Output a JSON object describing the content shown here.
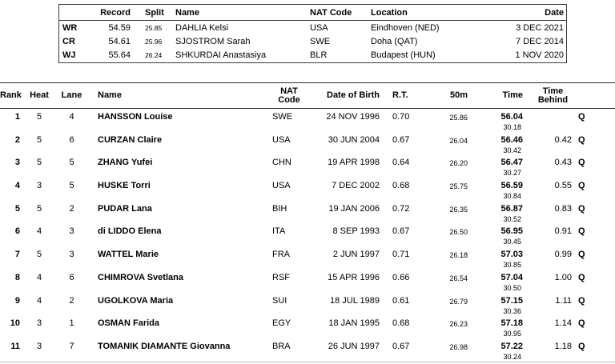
{
  "records": {
    "headers": {
      "record": "Record",
      "split": "Split",
      "name": "Name",
      "nat": "NAT Code",
      "location": "Location",
      "date": "Date"
    },
    "rows": [
      {
        "label": "WR",
        "record": "54.59",
        "split": "25.85",
        "name": "DAHLIA Kelsi",
        "nat": "USA",
        "location": "Eindhoven (NED)",
        "date": "3 DEC 2021"
      },
      {
        "label": "CR",
        "record": "54.61",
        "split": "25.96",
        "name": "SJOSTROM Sarah",
        "nat": "SWE",
        "location": "Doha (QAT)",
        "date": "7 DEC 2014"
      },
      {
        "label": "WJ",
        "record": "55.64",
        "split": "26.24",
        "name": "SHKURDAI Anastasiya",
        "nat": "BLR",
        "location": "Budapest (HUN)",
        "date": "1 NOV 2020"
      }
    ]
  },
  "results": {
    "headers": {
      "rank": "Rank",
      "heat": "Heat",
      "lane": "Lane",
      "name": "Name",
      "nat_line1": "NAT",
      "nat_line2": "Code",
      "dob": "Date of Birth",
      "rt": "R.T.",
      "split50": "50m",
      "time": "Time",
      "behind_line1": "Time",
      "behind_line2": "Behind"
    },
    "rows": [
      {
        "rank": "1",
        "heat": "5",
        "lane": "4",
        "name": "HANSSON Louise",
        "nat": "SWE",
        "dob": "24 NOV 1996",
        "rt": "0.70",
        "split50": "25.86",
        "time": "56.04",
        "time_sub": "30.18",
        "behind": "",
        "q": "Q"
      },
      {
        "rank": "2",
        "heat": "5",
        "lane": "6",
        "name": "CURZAN Claire",
        "nat": "USA",
        "dob": "30 JUN 2004",
        "rt": "0.67",
        "split50": "26.04",
        "time": "56.46",
        "time_sub": "30.42",
        "behind": "0.42",
        "q": "Q"
      },
      {
        "rank": "3",
        "heat": "5",
        "lane": "5",
        "name": "ZHANG Yufei",
        "nat": "CHN",
        "dob": "19 APR 1998",
        "rt": "0.64",
        "split50": "26.20",
        "time": "56.47",
        "time_sub": "30.27",
        "behind": "0.43",
        "q": "Q"
      },
      {
        "rank": "4",
        "heat": "3",
        "lane": "5",
        "name": "HUSKE Torri",
        "nat": "USA",
        "dob": "7 DEC 2002",
        "rt": "0.68",
        "split50": "25.75",
        "time": "56.59",
        "time_sub": "30.84",
        "behind": "0.55",
        "q": "Q"
      },
      {
        "rank": "5",
        "heat": "5",
        "lane": "2",
        "name": "PUDAR Lana",
        "nat": "BIH",
        "dob": "19 JAN 2006",
        "rt": "0.72",
        "split50": "26.35",
        "time": "56.87",
        "time_sub": "30.52",
        "behind": "0.83",
        "q": "Q"
      },
      {
        "rank": "6",
        "heat": "4",
        "lane": "3",
        "name": "di LIDDO Elena",
        "nat": "ITA",
        "dob": "8 SEP 1993",
        "rt": "0.67",
        "split50": "26.50",
        "time": "56.95",
        "time_sub": "30.45",
        "behind": "0.91",
        "q": "Q"
      },
      {
        "rank": "7",
        "heat": "5",
        "lane": "3",
        "name": "WATTEL Marie",
        "nat": "FRA",
        "dob": "2 JUN 1997",
        "rt": "0.71",
        "split50": "26.18",
        "time": "57.03",
        "time_sub": "30.85",
        "behind": "0.99",
        "q": "Q"
      },
      {
        "rank": "8",
        "heat": "4",
        "lane": "6",
        "name": "CHIMROVA Svetlana",
        "nat": "RSF",
        "dob": "15 APR 1996",
        "rt": "0.66",
        "split50": "26.54",
        "time": "57.04",
        "time_sub": "30.50",
        "behind": "1.00",
        "q": "Q"
      },
      {
        "rank": "9",
        "heat": "4",
        "lane": "2",
        "name": "UGOLKOVA Maria",
        "nat": "SUI",
        "dob": "18 JUL 1989",
        "rt": "0.61",
        "split50": "26.79",
        "time": "57.15",
        "time_sub": "30.36",
        "behind": "1.11",
        "q": "Q"
      },
      {
        "rank": "10",
        "heat": "3",
        "lane": "1",
        "name": "OSMAN Farida",
        "nat": "EGY",
        "dob": "18 JAN 1995",
        "rt": "0.68",
        "split50": "26.23",
        "time": "57.18",
        "time_sub": "30.95",
        "behind": "1.14",
        "q": "Q"
      },
      {
        "rank": "11",
        "heat": "3",
        "lane": "7",
        "name": "TOMANIK DIAMANTE Giovanna",
        "nat": "BRA",
        "dob": "26 JUN 1997",
        "rt": "0.67",
        "split50": "26.98",
        "time": "57.22",
        "time_sub": "30.24",
        "behind": "1.18",
        "q": "Q"
      }
    ]
  }
}
